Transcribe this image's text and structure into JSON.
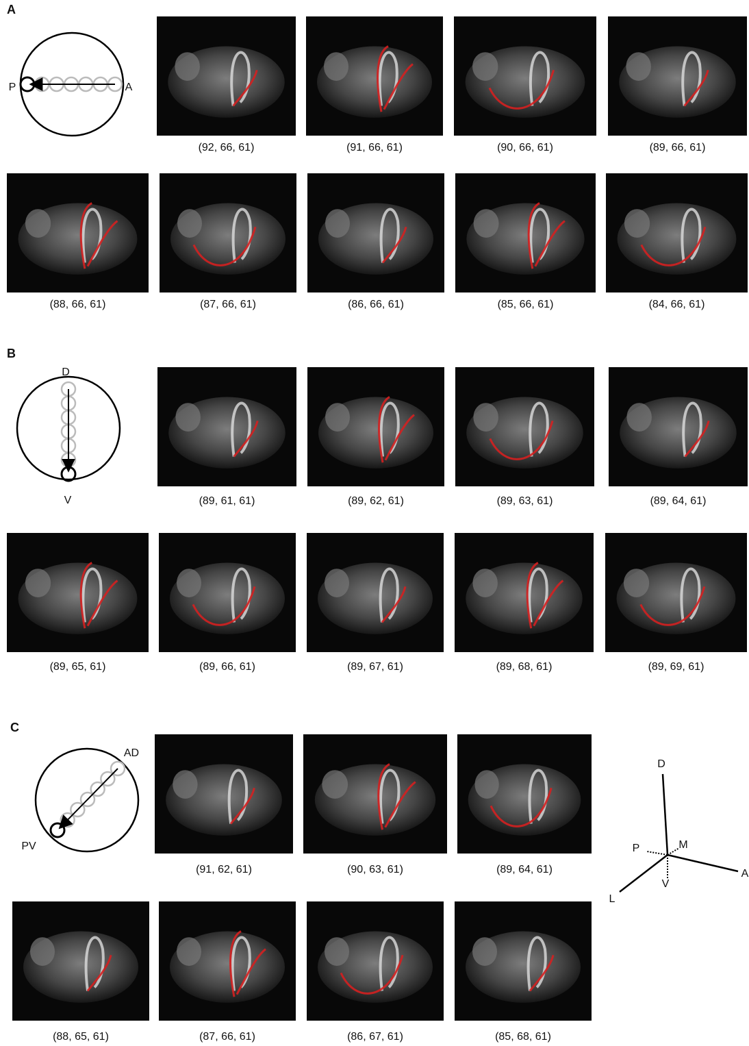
{
  "panels": [
    {
      "label": "A",
      "directions": [
        "P",
        "A"
      ],
      "images": [
        "(92, 66, 61)",
        "(91, 66, 61)",
        "(90, 66, 61)",
        "(89, 66, 61)",
        "(88, 66, 61)",
        "(87, 66, 61)",
        "(86, 66, 61)",
        "(85, 66, 61)",
        "(84, 66, 61)"
      ]
    },
    {
      "label": "B",
      "directions": [
        "D",
        "V"
      ],
      "images": [
        "(89, 61, 61)",
        "(89, 62, 61)",
        "(89, 63, 61)",
        "(89, 64, 61)",
        "(89, 65, 61)",
        "(89, 66, 61)",
        "(89, 67, 61)",
        "(89, 68, 61)",
        "(89, 69, 61)"
      ]
    },
    {
      "label": "C",
      "directions": [
        "AD",
        "PV"
      ],
      "images": [
        "(91, 62, 61)",
        "(90, 63, 61)",
        "(89, 64, 61)",
        "(88, 65, 61)",
        "(87, 66, 61)",
        "(86, 67, 61)",
        "(85, 68, 61)"
      ]
    }
  ],
  "axes": {
    "labels": [
      "D",
      "P",
      "M",
      "A",
      "V",
      "L"
    ]
  }
}
